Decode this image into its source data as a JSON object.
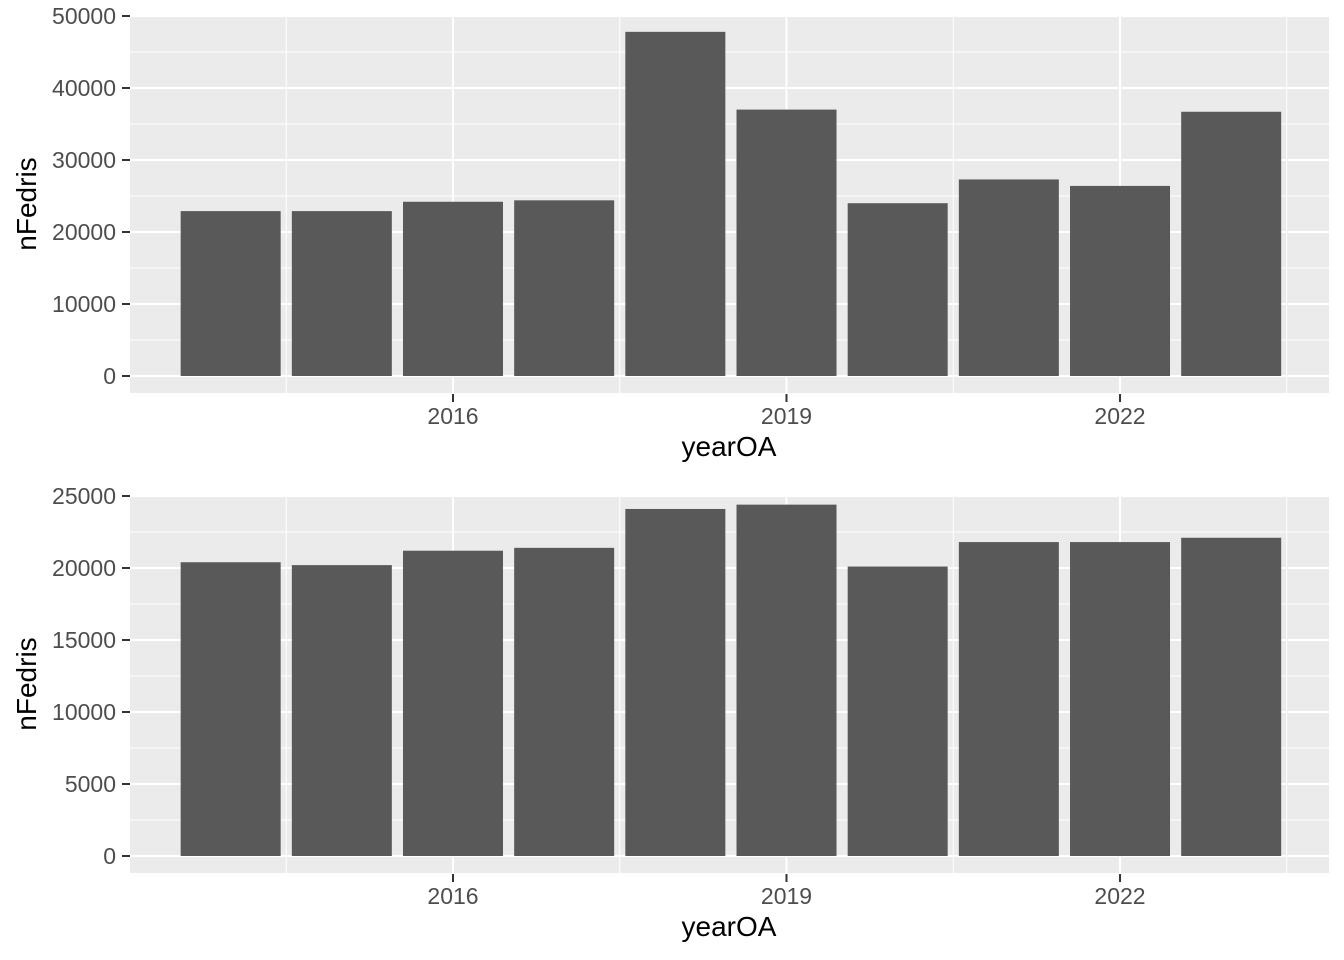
{
  "figure": {
    "description": "Two stacked bar charts of nFedris by yearOA",
    "background": "#FFFFFF"
  },
  "style": {
    "panel_background": "#EBEBEB",
    "grid_color": "#FFFFFF",
    "bar_color": "#595959",
    "axis_text_color": "#4D4D4D",
    "axis_title_color": "#000000",
    "tick_mark_color": "#333333"
  },
  "chart_data": [
    {
      "type": "bar",
      "title": "",
      "xlabel": "yearOA",
      "ylabel": "nFedris",
      "x": [
        2014,
        2015,
        2016,
        2017,
        2018,
        2019,
        2020,
        2021,
        2022,
        2023
      ],
      "values": [
        22900,
        22900,
        24200,
        24400,
        47800,
        37000,
        24000,
        27300,
        26400,
        36700
      ],
      "ylim": [
        0,
        50000
      ],
      "y_major_ticks": [
        0,
        10000,
        20000,
        30000,
        40000,
        50000
      ],
      "y_tick_labels": [
        "0",
        "10000",
        "20000",
        "30000",
        "40000",
        "50000"
      ],
      "y_minor_ticks": [
        5000,
        15000,
        25000,
        35000,
        45000
      ],
      "x_major_ticks": [
        2016,
        2019,
        2022
      ],
      "x_tick_labels": [
        "2016",
        "2019",
        "2022"
      ],
      "x_minor_ticks": [
        2014.5,
        2017.5,
        2020.5,
        2023.5
      ],
      "grid": true,
      "legend": false
    },
    {
      "type": "bar",
      "title": "",
      "xlabel": "yearOA",
      "ylabel": "nFedris",
      "x": [
        2014,
        2015,
        2016,
        2017,
        2018,
        2019,
        2020,
        2021,
        2022,
        2023
      ],
      "values": [
        20400,
        20200,
        21200,
        21400,
        24100,
        24400,
        20100,
        21800,
        21800,
        22100
      ],
      "ylim": [
        0,
        25000
      ],
      "y_major_ticks": [
        0,
        5000,
        10000,
        15000,
        20000,
        25000
      ],
      "y_tick_labels": [
        "0",
        "5000",
        "10000",
        "15000",
        "20000",
        "25000"
      ],
      "y_minor_ticks": [
        2500,
        7500,
        12500,
        17500,
        22500
      ],
      "x_major_ticks": [
        2016,
        2019,
        2022
      ],
      "x_tick_labels": [
        "2016",
        "2019",
        "2022"
      ],
      "x_minor_ticks": [
        2014.5,
        2017.5,
        2020.5,
        2023.5
      ],
      "grid": true,
      "legend": false
    }
  ]
}
